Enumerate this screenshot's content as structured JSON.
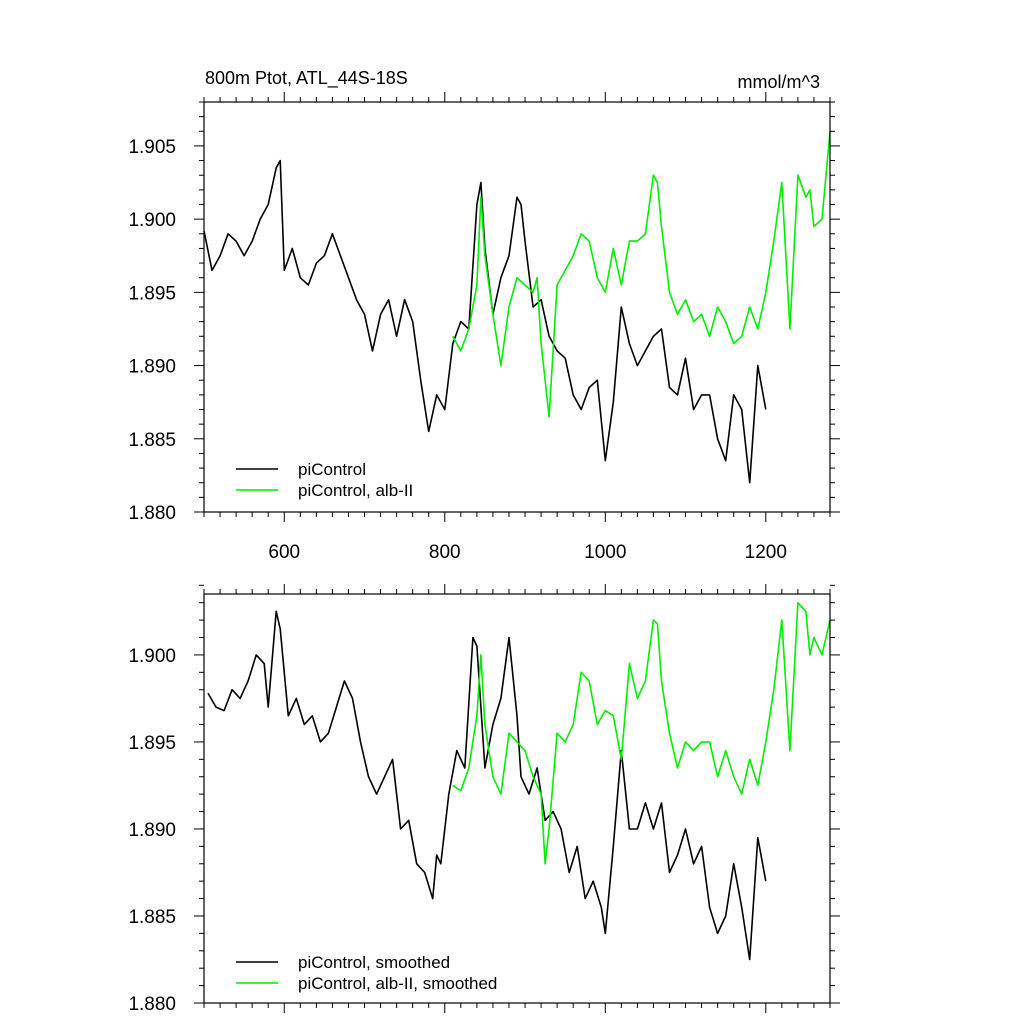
{
  "chart_data": [
    {
      "type": "line",
      "title_left": "800m Ptot, ATL_44S-18S",
      "title_right": "mmol/m^3",
      "xlim": [
        500,
        1280
      ],
      "ylim": [
        1.88,
        1.908
      ],
      "xticks": [
        600,
        800,
        1000,
        1200
      ],
      "yticks": [
        1.88,
        1.885,
        1.89,
        1.895,
        1.9,
        1.905
      ],
      "ytick_labels": [
        "1.880",
        "1.885",
        "1.890",
        "1.895",
        "1.900",
        "1.905"
      ],
      "xtick_labels": [
        "600",
        "800",
        "1000",
        "1200"
      ],
      "legend_position": "bottom-left",
      "series": [
        {
          "name": "piControl",
          "color": "#000000",
          "x": [
            500,
            510,
            520,
            530,
            540,
            550,
            560,
            570,
            580,
            590,
            595,
            600,
            610,
            620,
            630,
            640,
            650,
            660,
            670,
            680,
            690,
            700,
            710,
            720,
            730,
            740,
            750,
            760,
            770,
            780,
            790,
            800,
            810,
            820,
            830,
            840,
            845,
            850,
            860,
            870,
            880,
            890,
            895,
            900,
            910,
            920,
            930,
            940,
            950,
            960,
            970,
            980,
            990,
            1000,
            1010,
            1020,
            1030,
            1040,
            1050,
            1060,
            1070,
            1080,
            1090,
            1100,
            1110,
            1120,
            1130,
            1140,
            1150,
            1160,
            1170,
            1180,
            1190,
            1200
          ],
          "y": [
            1.8992,
            1.8965,
            1.8975,
            1.899,
            1.8985,
            1.8975,
            1.8985,
            1.9,
            1.901,
            1.9035,
            1.904,
            1.8965,
            1.898,
            1.896,
            1.8955,
            1.897,
            1.8975,
            1.899,
            1.8975,
            1.896,
            1.8945,
            1.8935,
            1.891,
            1.8935,
            1.8945,
            1.892,
            1.8945,
            1.893,
            1.889,
            1.8855,
            1.888,
            1.887,
            1.8915,
            1.893,
            1.8925,
            1.901,
            1.9025,
            1.898,
            1.8935,
            1.896,
            1.8975,
            1.9015,
            1.901,
            1.8985,
            1.894,
            1.8945,
            1.892,
            1.891,
            1.8905,
            1.888,
            1.887,
            1.8885,
            1.889,
            1.8835,
            1.8875,
            1.894,
            1.8915,
            1.89,
            1.891,
            1.892,
            1.8925,
            1.8885,
            1.888,
            1.8905,
            1.887,
            1.888,
            1.888,
            1.885,
            1.8835,
            1.888,
            1.887,
            1.882,
            1.89,
            1.887
          ]
        },
        {
          "name": "piControl, alb-II",
          "color": "#00ee00",
          "x": [
            810,
            820,
            830,
            840,
            845,
            850,
            860,
            870,
            880,
            890,
            900,
            910,
            915,
            920,
            925,
            930,
            940,
            950,
            960,
            970,
            980,
            990,
            1000,
            1010,
            1020,
            1030,
            1040,
            1050,
            1060,
            1065,
            1070,
            1080,
            1090,
            1100,
            1110,
            1120,
            1130,
            1140,
            1150,
            1160,
            1170,
            1180,
            1190,
            1200,
            1210,
            1220,
            1230,
            1240,
            1250,
            1255,
            1260,
            1270,
            1280
          ],
          "y": [
            1.892,
            1.891,
            1.8925,
            1.8955,
            1.9015,
            1.8975,
            1.8935,
            1.89,
            1.894,
            1.896,
            1.8955,
            1.895,
            1.896,
            1.8915,
            1.889,
            1.8865,
            1.8955,
            1.8965,
            1.8975,
            1.899,
            1.8985,
            1.896,
            1.895,
            1.898,
            1.8955,
            1.8985,
            1.8985,
            1.899,
            1.903,
            1.9025,
            1.8995,
            1.895,
            1.8935,
            1.8945,
            1.893,
            1.8935,
            1.892,
            1.894,
            1.893,
            1.8915,
            1.892,
            1.894,
            1.8925,
            1.895,
            1.8985,
            1.9025,
            1.8925,
            1.903,
            1.9015,
            1.902,
            1.8995,
            1.9,
            1.906
          ]
        }
      ]
    },
    {
      "type": "line",
      "xlim": [
        500,
        1280
      ],
      "ylim": [
        1.88,
        1.9035
      ],
      "xticks": [
        600,
        800,
        1000,
        1200
      ],
      "yticks": [
        1.88,
        1.885,
        1.89,
        1.895,
        1.9
      ],
      "ytick_labels": [
        "1.880",
        "1.885",
        "1.890",
        "1.895",
        "1.900"
      ],
      "legend_position": "bottom-left",
      "series": [
        {
          "name": "piControl, smoothed",
          "color": "#000000",
          "x": [
            505,
            515,
            525,
            535,
            545,
            555,
            565,
            575,
            580,
            590,
            595,
            605,
            615,
            625,
            635,
            645,
            655,
            665,
            675,
            685,
            695,
            705,
            715,
            725,
            735,
            745,
            755,
            765,
            775,
            785,
            790,
            795,
            805,
            815,
            825,
            835,
            840,
            850,
            860,
            870,
            880,
            890,
            895,
            905,
            915,
            925,
            935,
            945,
            955,
            965,
            975,
            985,
            995,
            1000,
            1010,
            1020,
            1030,
            1040,
            1050,
            1060,
            1070,
            1080,
            1090,
            1100,
            1110,
            1120,
            1130,
            1140,
            1150,
            1160,
            1170,
            1180,
            1190,
            1200
          ],
          "y": [
            1.8978,
            1.897,
            1.8968,
            1.898,
            1.8975,
            1.8985,
            1.9,
            1.8995,
            1.897,
            1.9025,
            1.9015,
            1.8965,
            1.8975,
            1.896,
            1.8965,
            1.895,
            1.8955,
            1.897,
            1.8985,
            1.8975,
            1.895,
            1.893,
            1.892,
            1.893,
            1.894,
            1.89,
            1.8905,
            1.888,
            1.8875,
            1.886,
            1.8885,
            1.888,
            1.892,
            1.8945,
            1.8935,
            1.901,
            1.9005,
            1.8935,
            1.896,
            1.8975,
            1.901,
            1.8965,
            1.893,
            1.892,
            1.8935,
            1.8905,
            1.891,
            1.89,
            1.8875,
            1.889,
            1.886,
            1.887,
            1.8855,
            1.884,
            1.889,
            1.8945,
            1.89,
            1.89,
            1.8915,
            1.89,
            1.8915,
            1.8875,
            1.8885,
            1.89,
            1.888,
            1.889,
            1.8855,
            1.884,
            1.885,
            1.888,
            1.8855,
            1.8825,
            1.8895,
            1.887
          ]
        },
        {
          "name": "piControl, alb-II, smoothed",
          "color": "#00ee00",
          "x": [
            810,
            820,
            830,
            840,
            845,
            850,
            860,
            870,
            880,
            890,
            900,
            910,
            920,
            925,
            930,
            940,
            950,
            960,
            970,
            980,
            990,
            1000,
            1010,
            1020,
            1030,
            1040,
            1050,
            1060,
            1065,
            1070,
            1080,
            1090,
            1100,
            1110,
            1120,
            1130,
            1140,
            1150,
            1160,
            1170,
            1180,
            1190,
            1200,
            1210,
            1220,
            1230,
            1240,
            1250,
            1255,
            1260,
            1270,
            1280
          ],
          "y": [
            1.8925,
            1.8922,
            1.8935,
            1.8965,
            1.9,
            1.896,
            1.893,
            1.892,
            1.8955,
            1.895,
            1.8945,
            1.893,
            1.892,
            1.888,
            1.89,
            1.8955,
            1.895,
            1.896,
            1.899,
            1.8985,
            1.896,
            1.8968,
            1.8965,
            1.894,
            1.8995,
            1.8975,
            1.8985,
            1.902,
            1.9018,
            1.8985,
            1.8955,
            1.8935,
            1.895,
            1.8945,
            1.895,
            1.895,
            1.893,
            1.8945,
            1.893,
            1.892,
            1.894,
            1.8925,
            1.895,
            1.898,
            1.902,
            1.8945,
            1.903,
            1.9025,
            1.9,
            1.901,
            1.9,
            1.902
          ]
        }
      ]
    }
  ]
}
